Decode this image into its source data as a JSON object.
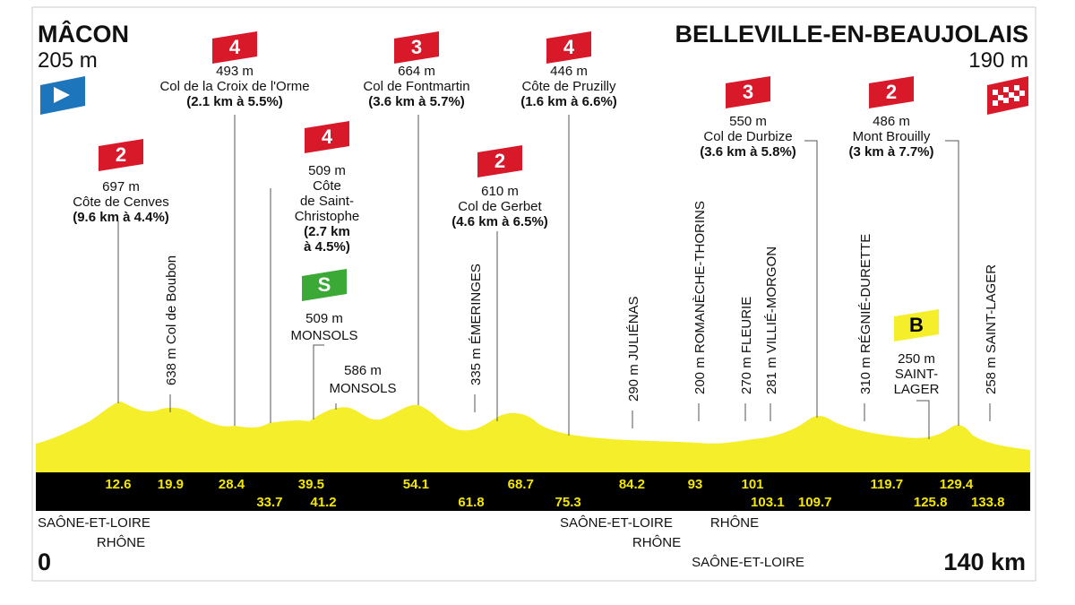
{
  "start": {
    "town": "MÂCON",
    "altitude": "205 m",
    "distance": "0"
  },
  "finish": {
    "town": "BELLEVILLE-EN-BEAUJOLAIS",
    "altitude": "190 m",
    "distance": "140 km"
  },
  "climbs": [
    {
      "category": "2",
      "lines": [
        "697 m",
        "Côte de Cenves",
        "(9.6 km à 4.4%)"
      ]
    },
    {
      "category": "4",
      "lines": [
        "493 m",
        "Col de la Croix de l'Orme",
        "(2.1 km à 5.5%)"
      ]
    },
    {
      "category": "4",
      "lines": [
        "509 m",
        "Côte",
        "de Saint-",
        "Christophe",
        "(2.7 km",
        "à 4.5%)"
      ]
    },
    {
      "category": "3",
      "lines": [
        "664 m",
        "Col de Fontmartin",
        "(3.6 km à 5.7%)"
      ]
    },
    {
      "category": "2",
      "lines": [
        "610 m",
        "Col de Gerbet",
        "(4.6 km à 6.5%)"
      ]
    },
    {
      "category": "4",
      "lines": [
        "446 m",
        "Côte de Pruzilly",
        "(1.6 km à 6.6%)"
      ]
    },
    {
      "category": "3",
      "lines": [
        "550 m",
        "Col de Durbize",
        "(3.6 km à 5.8%)"
      ]
    },
    {
      "category": "2",
      "lines": [
        "486 m",
        "Mont Brouilly",
        "(3 km à 7.7%)"
      ]
    }
  ],
  "sprint": {
    "label": "S",
    "lines": [
      "509 m",
      "MONSOLS"
    ]
  },
  "bonus": {
    "label": "B",
    "lines": [
      "250 m",
      "SAINT-",
      "LAGER"
    ]
  },
  "point": {
    "lines": [
      "586 m",
      "MONSOLS"
    ]
  },
  "towns": [
    "638 m Col de Boubon",
    "335 m ÉMERINGES",
    "290 m JULIÉNAS",
    "200 m ROMANÈCHE-THORINS",
    "270 m FLEURIE",
    "281 m VILLIÉ-MORGON",
    "310 m RÉGNIÉ-DURETTE",
    "258 m SAINT-LAGER"
  ],
  "km_markers": [
    12.6,
    19.9,
    28.4,
    33.7,
    39.5,
    41.2,
    54.1,
    61.8,
    68.7,
    75.3,
    84.2,
    93,
    101,
    103.1,
    109.7,
    119.7,
    125.8,
    129.4,
    133.8
  ],
  "regions": [
    "SAÔNE-ET-LOIRE",
    "RHÔNE",
    "SAÔNE-ET-LOIRE",
    "RHÔNE",
    "RHÔNE",
    "SAÔNE-ET-LOIRE"
  ]
}
